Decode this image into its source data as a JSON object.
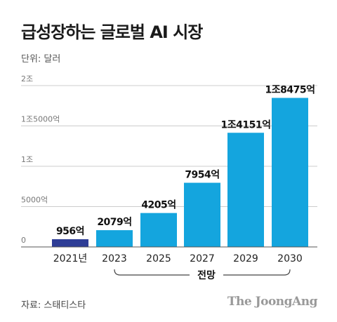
{
  "title": "급성장하는 글로벌 AI 시장",
  "unit_label": "단위: 달러",
  "source": "자료: 스태티스타",
  "brand": "The JoongAng",
  "forecast_label": "전망",
  "colors": {
    "actual": "#2e3d96",
    "forecast": "#14a5de",
    "grid": "#cccccc",
    "text": "#222222",
    "tick": "#777777"
  },
  "chart_data": {
    "type": "bar",
    "categories": [
      "2021년",
      "2023",
      "2025",
      "2027",
      "2029",
      "2030"
    ],
    "values": [
      956,
      2079,
      4205,
      7954,
      14151,
      18475
    ],
    "value_labels": [
      "956억",
      "2079억",
      "4205억",
      "7954억",
      "1조4151억",
      "1조8475억"
    ],
    "ylim": [
      0,
      20000
    ],
    "yticks": [
      0,
      5000,
      10000,
      15000,
      20000
    ],
    "ytick_labels": [
      "0",
      "5000억",
      "1조",
      "1조5000억",
      "2조"
    ],
    "grid": true,
    "forecast_range": [
      "2023",
      "2030"
    ]
  }
}
